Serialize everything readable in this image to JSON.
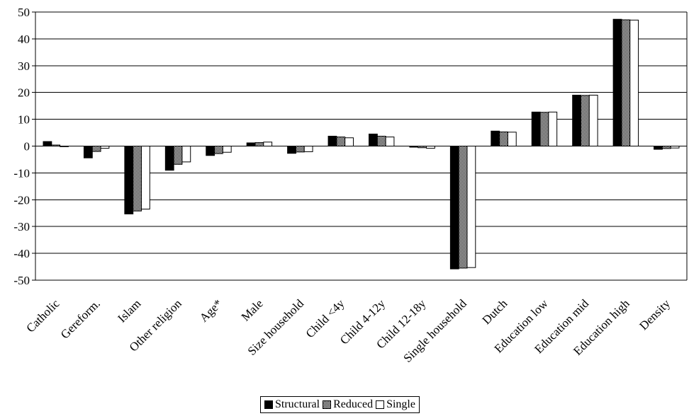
{
  "chart_data": {
    "type": "bar",
    "categories": [
      "Catholic",
      "Gereform.",
      "Islam",
      "Other religion",
      "Age*",
      "Male",
      "Size household",
      "Child <4y",
      "Child 4-12y",
      "Child 12-18y",
      "Single household",
      "Dutch",
      "Education low",
      "Education mid",
      "Education high",
      "Density"
    ],
    "series": [
      {
        "name": "Structural",
        "color": "#000000",
        "pattern": "solid",
        "values": [
          1.7,
          -4.4,
          -25.3,
          -9.0,
          -3.5,
          1.2,
          -2.7,
          3.7,
          4.5,
          -0.4,
          -45.8,
          5.6,
          12.7,
          19.0,
          47.3,
          -1.2
        ]
      },
      {
        "name": "Reduced",
        "color": "#555555",
        "pattern": "checker",
        "values": [
          0.4,
          -2.0,
          -24.2,
          -6.8,
          -2.8,
          1.3,
          -2.2,
          3.4,
          3.7,
          -0.6,
          -45.5,
          5.3,
          12.6,
          18.9,
          47.1,
          -0.9
        ]
      },
      {
        "name": "Single",
        "color": "#ffffff",
        "pattern": "hollow",
        "values": [
          -0.2,
          -0.8,
          -23.5,
          -5.9,
          -2.3,
          1.5,
          -2.1,
          3.1,
          3.4,
          -0.8,
          -45.3,
          5.2,
          12.7,
          19.0,
          47.0,
          -0.7
        ]
      }
    ],
    "yticks": [
      50,
      40,
      30,
      20,
      10,
      0,
      -10,
      -20,
      -30,
      -40,
      -50
    ],
    "ylim": [
      -50,
      50
    ],
    "grid": true,
    "legend_position": "bottom-center",
    "title": "",
    "xlabel": "",
    "ylabel": ""
  }
}
